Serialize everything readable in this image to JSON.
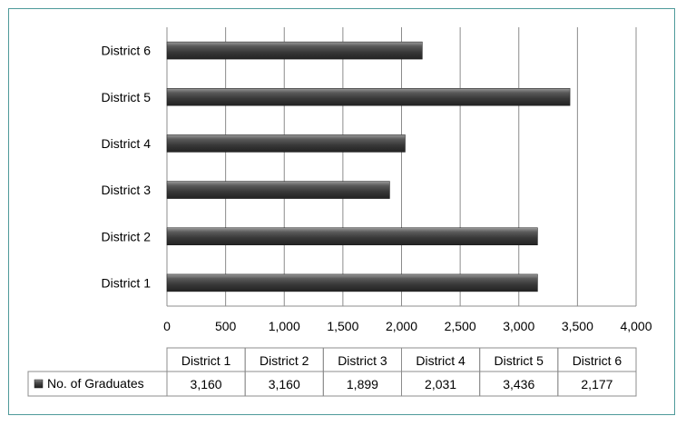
{
  "chart_data": {
    "type": "bar",
    "orientation": "horizontal",
    "categories": [
      "District 1",
      "District 2",
      "District 3",
      "District 4",
      "District 5",
      "District 6"
    ],
    "series": [
      {
        "name": "No. of Graduates",
        "values": [
          3160,
          3160,
          1899,
          2031,
          3436,
          2177
        ],
        "color": "#454545"
      }
    ],
    "xticks": [
      "0",
      "500",
      "1,000",
      "1,500",
      "2,000",
      "2,500",
      "3,000",
      "3,500",
      "4,000"
    ],
    "xlim": [
      0,
      4000
    ],
    "grid": "vertical",
    "data_table": {
      "values": [
        "3,160",
        "3,160",
        "1,899",
        "2,031",
        "3,436",
        "2,177"
      ]
    }
  }
}
